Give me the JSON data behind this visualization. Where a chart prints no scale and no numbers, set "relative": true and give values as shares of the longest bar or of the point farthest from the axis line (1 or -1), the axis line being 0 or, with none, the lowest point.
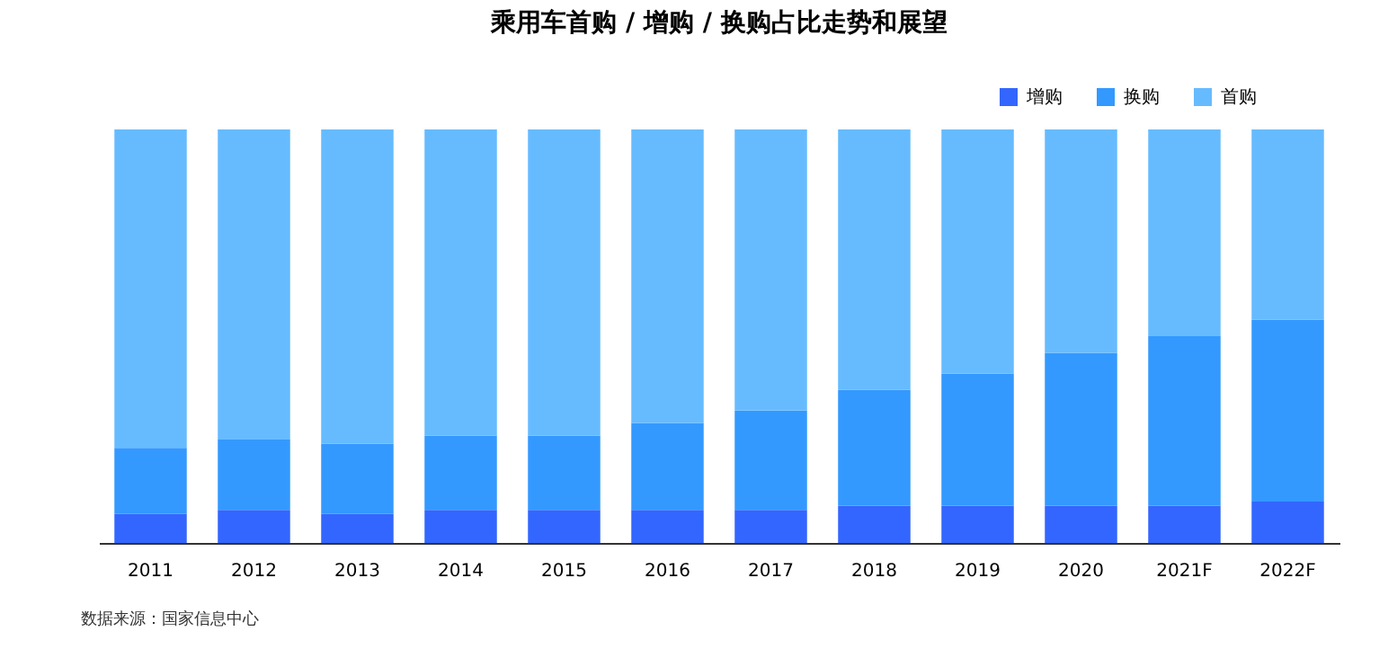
{
  "chart_data": {
    "type": "bar",
    "title": "乘用车首购 / 增购 / 换购占比走势和展望",
    "stacked": true,
    "relative": true,
    "legend": "top right",
    "grid": false,
    "categories": [
      "2011",
      "2012",
      "2013",
      "2014",
      "2015",
      "2016",
      "2017",
      "2018",
      "2019",
      "2020",
      "2021F",
      "2022F"
    ],
    "series": [
      {
        "name": "增购",
        "color": "#3366ff",
        "values": [
          0.07,
          0.08,
          0.07,
          0.08,
          0.08,
          0.08,
          0.08,
          0.09,
          0.09,
          0.09,
          0.09,
          0.1
        ]
      },
      {
        "name": "换购",
        "color": "#3399ff",
        "values": [
          0.16,
          0.17,
          0.17,
          0.18,
          0.18,
          0.21,
          0.24,
          0.28,
          0.32,
          0.37,
          0.41,
          0.44
        ]
      },
      {
        "name": "首购",
        "color": "#66bbff",
        "values": [
          0.77,
          0.75,
          0.76,
          0.74,
          0.74,
          0.71,
          0.68,
          0.63,
          0.59,
          0.54,
          0.5,
          0.46
        ]
      }
    ],
    "annotations": [
      "数据来源：国家信息中心"
    ]
  }
}
